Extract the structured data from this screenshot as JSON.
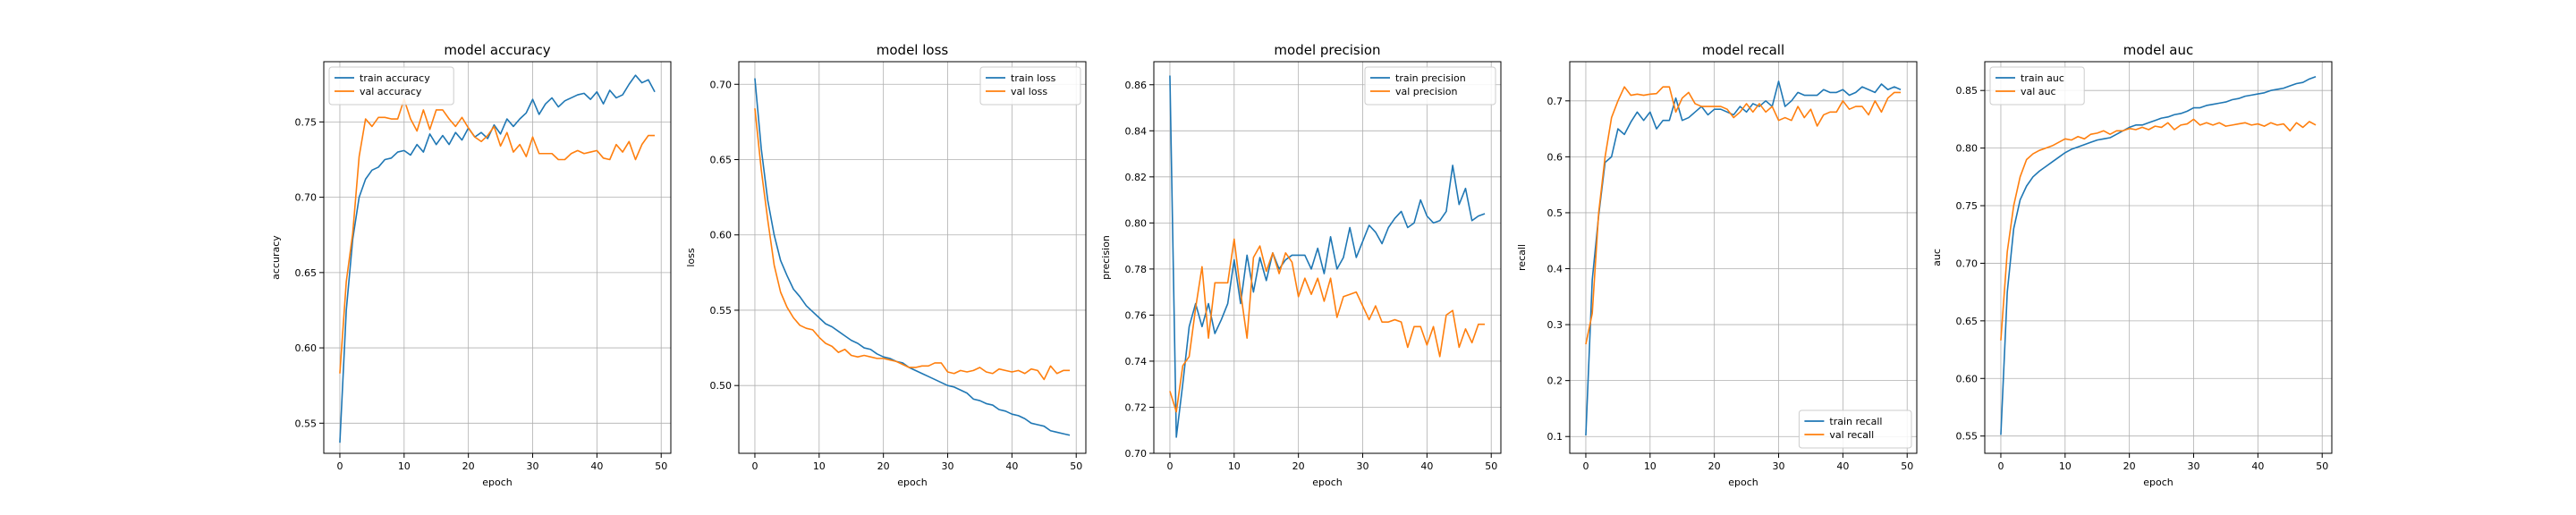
{
  "chart_data": [
    {
      "type": "line",
      "title": "model accuracy",
      "xlabel": "epoch",
      "ylabel": "accuracy",
      "xlim": [
        -2.5,
        51.5
      ],
      "ylim": [
        0.53,
        0.79
      ],
      "xticks": [
        0,
        10,
        20,
        30,
        40,
        50
      ],
      "yticks": [
        0.55,
        0.6,
        0.65,
        0.7,
        0.75
      ],
      "ytick_labels": [
        "0.55",
        "0.60",
        "0.65",
        "0.70",
        "0.75"
      ],
      "grid": true,
      "legend": "upper-left",
      "x": [
        0,
        1,
        2,
        3,
        4,
        5,
        6,
        7,
        8,
        9,
        10,
        11,
        12,
        13,
        14,
        15,
        16,
        17,
        18,
        19,
        20,
        21,
        22,
        23,
        24,
        25,
        26,
        27,
        28,
        29,
        30,
        31,
        32,
        33,
        34,
        35,
        36,
        37,
        38,
        39,
        40,
        41,
        42,
        43,
        44,
        45,
        46,
        47,
        48,
        49
      ],
      "series": [
        {
          "name": "train accuracy",
          "color": "#1f77b4",
          "values": [
            0.537,
            0.625,
            0.672,
            0.7,
            0.712,
            0.718,
            0.72,
            0.725,
            0.726,
            0.73,
            0.731,
            0.728,
            0.735,
            0.73,
            0.742,
            0.735,
            0.741,
            0.735,
            0.743,
            0.738,
            0.746,
            0.74,
            0.743,
            0.739,
            0.748,
            0.742,
            0.752,
            0.747,
            0.752,
            0.756,
            0.765,
            0.755,
            0.762,
            0.766,
            0.76,
            0.764,
            0.766,
            0.768,
            0.769,
            0.765,
            0.77,
            0.762,
            0.771,
            0.766,
            0.768,
            0.775,
            0.781,
            0.776,
            0.778,
            0.77
          ]
        },
        {
          "name": "val accuracy",
          "color": "#ff7f0e",
          "values": [
            0.583,
            0.644,
            0.676,
            0.727,
            0.752,
            0.747,
            0.753,
            0.753,
            0.752,
            0.752,
            0.765,
            0.752,
            0.744,
            0.758,
            0.745,
            0.758,
            0.758,
            0.752,
            0.747,
            0.753,
            0.746,
            0.74,
            0.737,
            0.741,
            0.747,
            0.734,
            0.743,
            0.73,
            0.735,
            0.727,
            0.74,
            0.729,
            0.729,
            0.729,
            0.725,
            0.725,
            0.729,
            0.731,
            0.729,
            0.73,
            0.731,
            0.726,
            0.725,
            0.735,
            0.73,
            0.737,
            0.725,
            0.735,
            0.741,
            0.741
          ]
        }
      ]
    },
    {
      "type": "line",
      "title": "model loss",
      "xlabel": "epoch",
      "ylabel": "loss",
      "xlim": [
        -2.5,
        51.5
      ],
      "ylim": [
        0.455,
        0.715
      ],
      "xticks": [
        0,
        10,
        20,
        30,
        40,
        50
      ],
      "yticks": [
        0.5,
        0.55,
        0.6,
        0.65,
        0.7
      ],
      "ytick_labels": [
        "0.50",
        "0.55",
        "0.60",
        "0.65",
        "0.70"
      ],
      "grid": true,
      "legend": "upper-right",
      "x": [
        0,
        1,
        2,
        3,
        4,
        5,
        6,
        7,
        8,
        9,
        10,
        11,
        12,
        13,
        14,
        15,
        16,
        17,
        18,
        19,
        20,
        21,
        22,
        23,
        24,
        25,
        26,
        27,
        28,
        29,
        30,
        31,
        32,
        33,
        34,
        35,
        36,
        37,
        38,
        39,
        40,
        41,
        42,
        43,
        44,
        45,
        46,
        47,
        48,
        49
      ],
      "series": [
        {
          "name": "train loss",
          "color": "#1f77b4",
          "values": [
            0.704,
            0.657,
            0.623,
            0.6,
            0.583,
            0.573,
            0.564,
            0.559,
            0.553,
            0.549,
            0.545,
            0.541,
            0.539,
            0.536,
            0.533,
            0.53,
            0.528,
            0.525,
            0.524,
            0.521,
            0.519,
            0.518,
            0.516,
            0.515,
            0.512,
            0.51,
            0.508,
            0.506,
            0.504,
            0.502,
            0.5,
            0.499,
            0.497,
            0.495,
            0.491,
            0.49,
            0.488,
            0.487,
            0.484,
            0.483,
            0.481,
            0.48,
            0.478,
            0.475,
            0.474,
            0.473,
            0.47,
            0.469,
            0.468,
            0.467
          ]
        },
        {
          "name": "val loss",
          "color": "#ff7f0e",
          "values": [
            0.684,
            0.643,
            0.61,
            0.58,
            0.562,
            0.552,
            0.545,
            0.54,
            0.538,
            0.537,
            0.532,
            0.528,
            0.526,
            0.522,
            0.524,
            0.52,
            0.519,
            0.52,
            0.519,
            0.518,
            0.518,
            0.517,
            0.516,
            0.514,
            0.512,
            0.512,
            0.513,
            0.513,
            0.515,
            0.515,
            0.509,
            0.508,
            0.51,
            0.509,
            0.51,
            0.512,
            0.509,
            0.508,
            0.511,
            0.51,
            0.509,
            0.51,
            0.508,
            0.511,
            0.51,
            0.504,
            0.513,
            0.508,
            0.51,
            0.51
          ]
        }
      ]
    },
    {
      "type": "line",
      "title": "model precision",
      "xlabel": "epoch",
      "ylabel": "precision",
      "xlim": [
        -2.5,
        51.5
      ],
      "ylim": [
        0.7,
        0.87
      ],
      "xticks": [
        0,
        10,
        20,
        30,
        40,
        50
      ],
      "yticks": [
        0.7,
        0.72,
        0.74,
        0.76,
        0.78,
        0.8,
        0.82,
        0.84,
        0.86
      ],
      "ytick_labels": [
        "0.70",
        "0.72",
        "0.74",
        "0.76",
        "0.78",
        "0.80",
        "0.82",
        "0.84",
        "0.86"
      ],
      "grid": true,
      "legend": "upper-right",
      "x": [
        0,
        1,
        2,
        3,
        4,
        5,
        6,
        7,
        8,
        9,
        10,
        11,
        12,
        13,
        14,
        15,
        16,
        17,
        18,
        19,
        20,
        21,
        22,
        23,
        24,
        25,
        26,
        27,
        28,
        29,
        30,
        31,
        32,
        33,
        34,
        35,
        36,
        37,
        38,
        39,
        40,
        41,
        42,
        43,
        44,
        45,
        46,
        47,
        48,
        49
      ],
      "series": [
        {
          "name": "train precision",
          "color": "#1f77b4",
          "values": [
            0.864,
            0.707,
            0.73,
            0.755,
            0.765,
            0.755,
            0.765,
            0.752,
            0.758,
            0.765,
            0.784,
            0.765,
            0.786,
            0.77,
            0.785,
            0.775,
            0.787,
            0.78,
            0.784,
            0.786,
            0.786,
            0.786,
            0.78,
            0.789,
            0.778,
            0.794,
            0.78,
            0.785,
            0.798,
            0.785,
            0.792,
            0.799,
            0.796,
            0.791,
            0.798,
            0.802,
            0.805,
            0.798,
            0.8,
            0.81,
            0.803,
            0.8,
            0.801,
            0.805,
            0.825,
            0.808,
            0.815,
            0.801,
            0.803,
            0.804
          ]
        },
        {
          "name": "val precision",
          "color": "#ff7f0e",
          "values": [
            0.727,
            0.718,
            0.738,
            0.742,
            0.763,
            0.781,
            0.75,
            0.774,
            0.774,
            0.774,
            0.793,
            0.77,
            0.75,
            0.785,
            0.79,
            0.779,
            0.787,
            0.778,
            0.787,
            0.783,
            0.768,
            0.776,
            0.769,
            0.776,
            0.766,
            0.776,
            0.759,
            0.768,
            0.769,
            0.77,
            0.764,
            0.758,
            0.764,
            0.757,
            0.757,
            0.758,
            0.757,
            0.746,
            0.755,
            0.755,
            0.747,
            0.755,
            0.742,
            0.76,
            0.762,
            0.746,
            0.754,
            0.748,
            0.756,
            0.756
          ]
        }
      ]
    },
    {
      "type": "line",
      "title": "model recall",
      "xlabel": "epoch",
      "ylabel": "recall",
      "xlim": [
        -2.5,
        51.5
      ],
      "ylim": [
        0.07,
        0.77
      ],
      "xticks": [
        0,
        10,
        20,
        30,
        40,
        50
      ],
      "yticks": [
        0.1,
        0.2,
        0.3,
        0.4,
        0.5,
        0.6,
        0.7
      ],
      "ytick_labels": [
        "0.1",
        "0.2",
        "0.3",
        "0.4",
        "0.5",
        "0.6",
        "0.7"
      ],
      "grid": true,
      "legend": "lower-right",
      "x": [
        0,
        1,
        2,
        3,
        4,
        5,
        6,
        7,
        8,
        9,
        10,
        11,
        12,
        13,
        14,
        15,
        16,
        17,
        18,
        19,
        20,
        21,
        22,
        23,
        24,
        25,
        26,
        27,
        28,
        29,
        30,
        31,
        32,
        33,
        34,
        35,
        36,
        37,
        38,
        39,
        40,
        41,
        42,
        43,
        44,
        45,
        46,
        47,
        48,
        49
      ],
      "series": [
        {
          "name": "train recall",
          "color": "#1f77b4",
          "values": [
            0.102,
            0.38,
            0.495,
            0.59,
            0.6,
            0.65,
            0.64,
            0.662,
            0.68,
            0.665,
            0.68,
            0.65,
            0.665,
            0.665,
            0.705,
            0.665,
            0.67,
            0.68,
            0.69,
            0.675,
            0.685,
            0.685,
            0.68,
            0.675,
            0.69,
            0.68,
            0.695,
            0.69,
            0.7,
            0.69,
            0.735,
            0.69,
            0.7,
            0.715,
            0.71,
            0.71,
            0.71,
            0.72,
            0.715,
            0.715,
            0.72,
            0.71,
            0.715,
            0.725,
            0.72,
            0.715,
            0.73,
            0.72,
            0.725,
            0.72
          ]
        },
        {
          "name": "val recall",
          "color": "#ff7f0e",
          "values": [
            0.265,
            0.32,
            0.5,
            0.6,
            0.67,
            0.7,
            0.725,
            0.71,
            0.712,
            0.71,
            0.712,
            0.713,
            0.725,
            0.725,
            0.68,
            0.705,
            0.715,
            0.695,
            0.69,
            0.69,
            0.69,
            0.69,
            0.685,
            0.67,
            0.68,
            0.695,
            0.68,
            0.695,
            0.68,
            0.69,
            0.665,
            0.67,
            0.665,
            0.69,
            0.67,
            0.685,
            0.655,
            0.675,
            0.68,
            0.68,
            0.7,
            0.685,
            0.69,
            0.69,
            0.675,
            0.7,
            0.68,
            0.705,
            0.715,
            0.715
          ]
        }
      ]
    },
    {
      "type": "line",
      "title": "model auc",
      "xlabel": "epoch",
      "ylabel": "auc",
      "xlim": [
        -2.5,
        51.5
      ],
      "ylim": [
        0.535,
        0.875
      ],
      "xticks": [
        0,
        10,
        20,
        30,
        40,
        50
      ],
      "yticks": [
        0.55,
        0.6,
        0.65,
        0.7,
        0.75,
        0.8,
        0.85
      ],
      "ytick_labels": [
        "0.55",
        "0.60",
        "0.65",
        "0.70",
        "0.75",
        "0.80",
        "0.85"
      ],
      "grid": true,
      "legend": "upper-left",
      "x": [
        0,
        1,
        2,
        3,
        4,
        5,
        6,
        7,
        8,
        9,
        10,
        11,
        12,
        13,
        14,
        15,
        16,
        17,
        18,
        19,
        20,
        21,
        22,
        23,
        24,
        25,
        26,
        27,
        28,
        29,
        30,
        31,
        32,
        33,
        34,
        35,
        36,
        37,
        38,
        39,
        40,
        41,
        42,
        43,
        44,
        45,
        46,
        47,
        48,
        49
      ],
      "series": [
        {
          "name": "train auc",
          "color": "#1f77b4",
          "values": [
            0.551,
            0.675,
            0.73,
            0.755,
            0.767,
            0.775,
            0.78,
            0.784,
            0.788,
            0.792,
            0.796,
            0.799,
            0.801,
            0.803,
            0.805,
            0.807,
            0.808,
            0.809,
            0.812,
            0.815,
            0.818,
            0.82,
            0.82,
            0.822,
            0.824,
            0.826,
            0.827,
            0.829,
            0.83,
            0.832,
            0.835,
            0.835,
            0.837,
            0.838,
            0.839,
            0.84,
            0.842,
            0.843,
            0.845,
            0.846,
            0.847,
            0.848,
            0.85,
            0.851,
            0.852,
            0.854,
            0.856,
            0.857,
            0.86,
            0.862
          ]
        },
        {
          "name": "val auc",
          "color": "#ff7f0e",
          "values": [
            0.633,
            0.71,
            0.75,
            0.775,
            0.79,
            0.795,
            0.798,
            0.8,
            0.802,
            0.805,
            0.808,
            0.807,
            0.81,
            0.808,
            0.812,
            0.813,
            0.815,
            0.812,
            0.815,
            0.815,
            0.817,
            0.816,
            0.818,
            0.816,
            0.819,
            0.818,
            0.822,
            0.816,
            0.82,
            0.821,
            0.825,
            0.82,
            0.822,
            0.82,
            0.822,
            0.819,
            0.82,
            0.821,
            0.822,
            0.82,
            0.821,
            0.819,
            0.822,
            0.82,
            0.821,
            0.815,
            0.822,
            0.818,
            0.823,
            0.82
          ]
        }
      ]
    }
  ]
}
